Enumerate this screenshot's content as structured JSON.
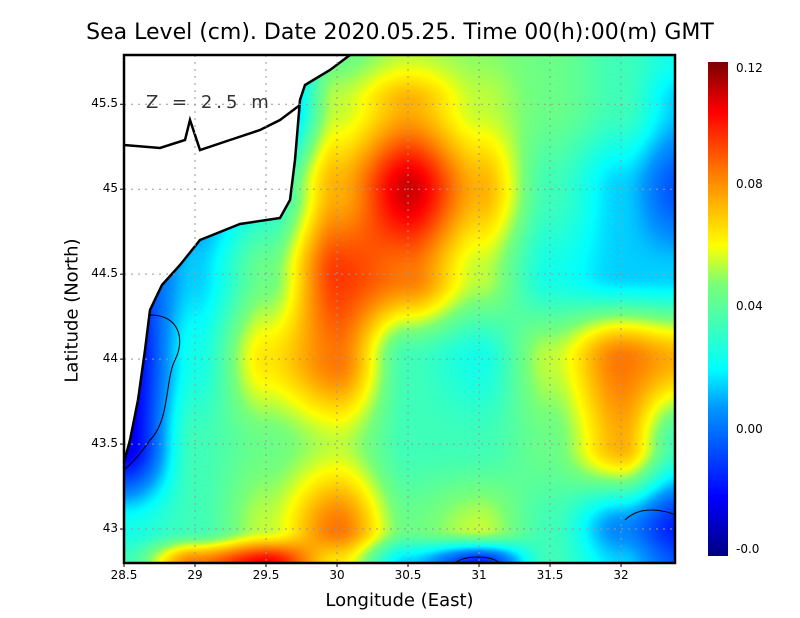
{
  "chart_data": {
    "type": "heatmap",
    "title": "Sea Level (cm). Date 2020.05.25. Time 00(h):00(m) GMT",
    "xlabel": "Longitude (East)",
    "ylabel": "Latitude (North)",
    "annotation": "Z = 2.5 m",
    "xlim": [
      28.5,
      32.38
    ],
    "ylim": [
      42.8,
      45.79
    ],
    "grid": true,
    "x_ticks": [
      "28.5",
      "29",
      "29.5",
      "30",
      "30.5",
      "31",
      "31.5",
      "32"
    ],
    "y_ticks": [
      "43",
      "43.5",
      "44",
      "44.5",
      "45",
      "45.5"
    ],
    "colorbar": {
      "ticks": [
        "0.12",
        "0.08",
        "0.04",
        "0.00",
        "-0.0"
      ],
      "range": [
        -0.035,
        0.125
      ]
    },
    "lon": [
      28.5,
      29,
      29.5,
      30,
      30.5,
      31,
      31.5,
      32,
      32.4
    ],
    "lat": [
      45.8,
      45.5,
      45.0,
      44.5,
      44.0,
      43.5,
      43.0,
      42.8
    ],
    "values": [
      [
        0.0,
        0.0,
        -0.01,
        0.05,
        0.06,
        0.055,
        0.05,
        0.04,
        0.03
      ],
      [
        0.0,
        0.0,
        -0.01,
        0.06,
        0.08,
        0.06,
        0.05,
        0.04,
        0.02
      ],
      [
        0.0,
        0.01,
        0.03,
        0.08,
        0.115,
        0.08,
        0.04,
        0.02,
        0.0
      ],
      [
        -0.01,
        0.02,
        0.05,
        0.1,
        0.09,
        0.06,
        0.03,
        0.02,
        0.02
      ],
      [
        -0.02,
        0.03,
        0.07,
        0.09,
        0.04,
        0.03,
        0.06,
        0.09,
        0.08
      ],
      [
        -0.02,
        0.04,
        0.05,
        0.06,
        0.04,
        0.04,
        0.05,
        0.08,
        0.04
      ],
      [
        0.03,
        0.04,
        0.06,
        0.09,
        0.05,
        0.06,
        0.04,
        0.01,
        -0.01
      ],
      [
        0.04,
        0.09,
        0.11,
        0.07,
        0.02,
        -0.01,
        0.04,
        0.02,
        0.0
      ]
    ]
  }
}
